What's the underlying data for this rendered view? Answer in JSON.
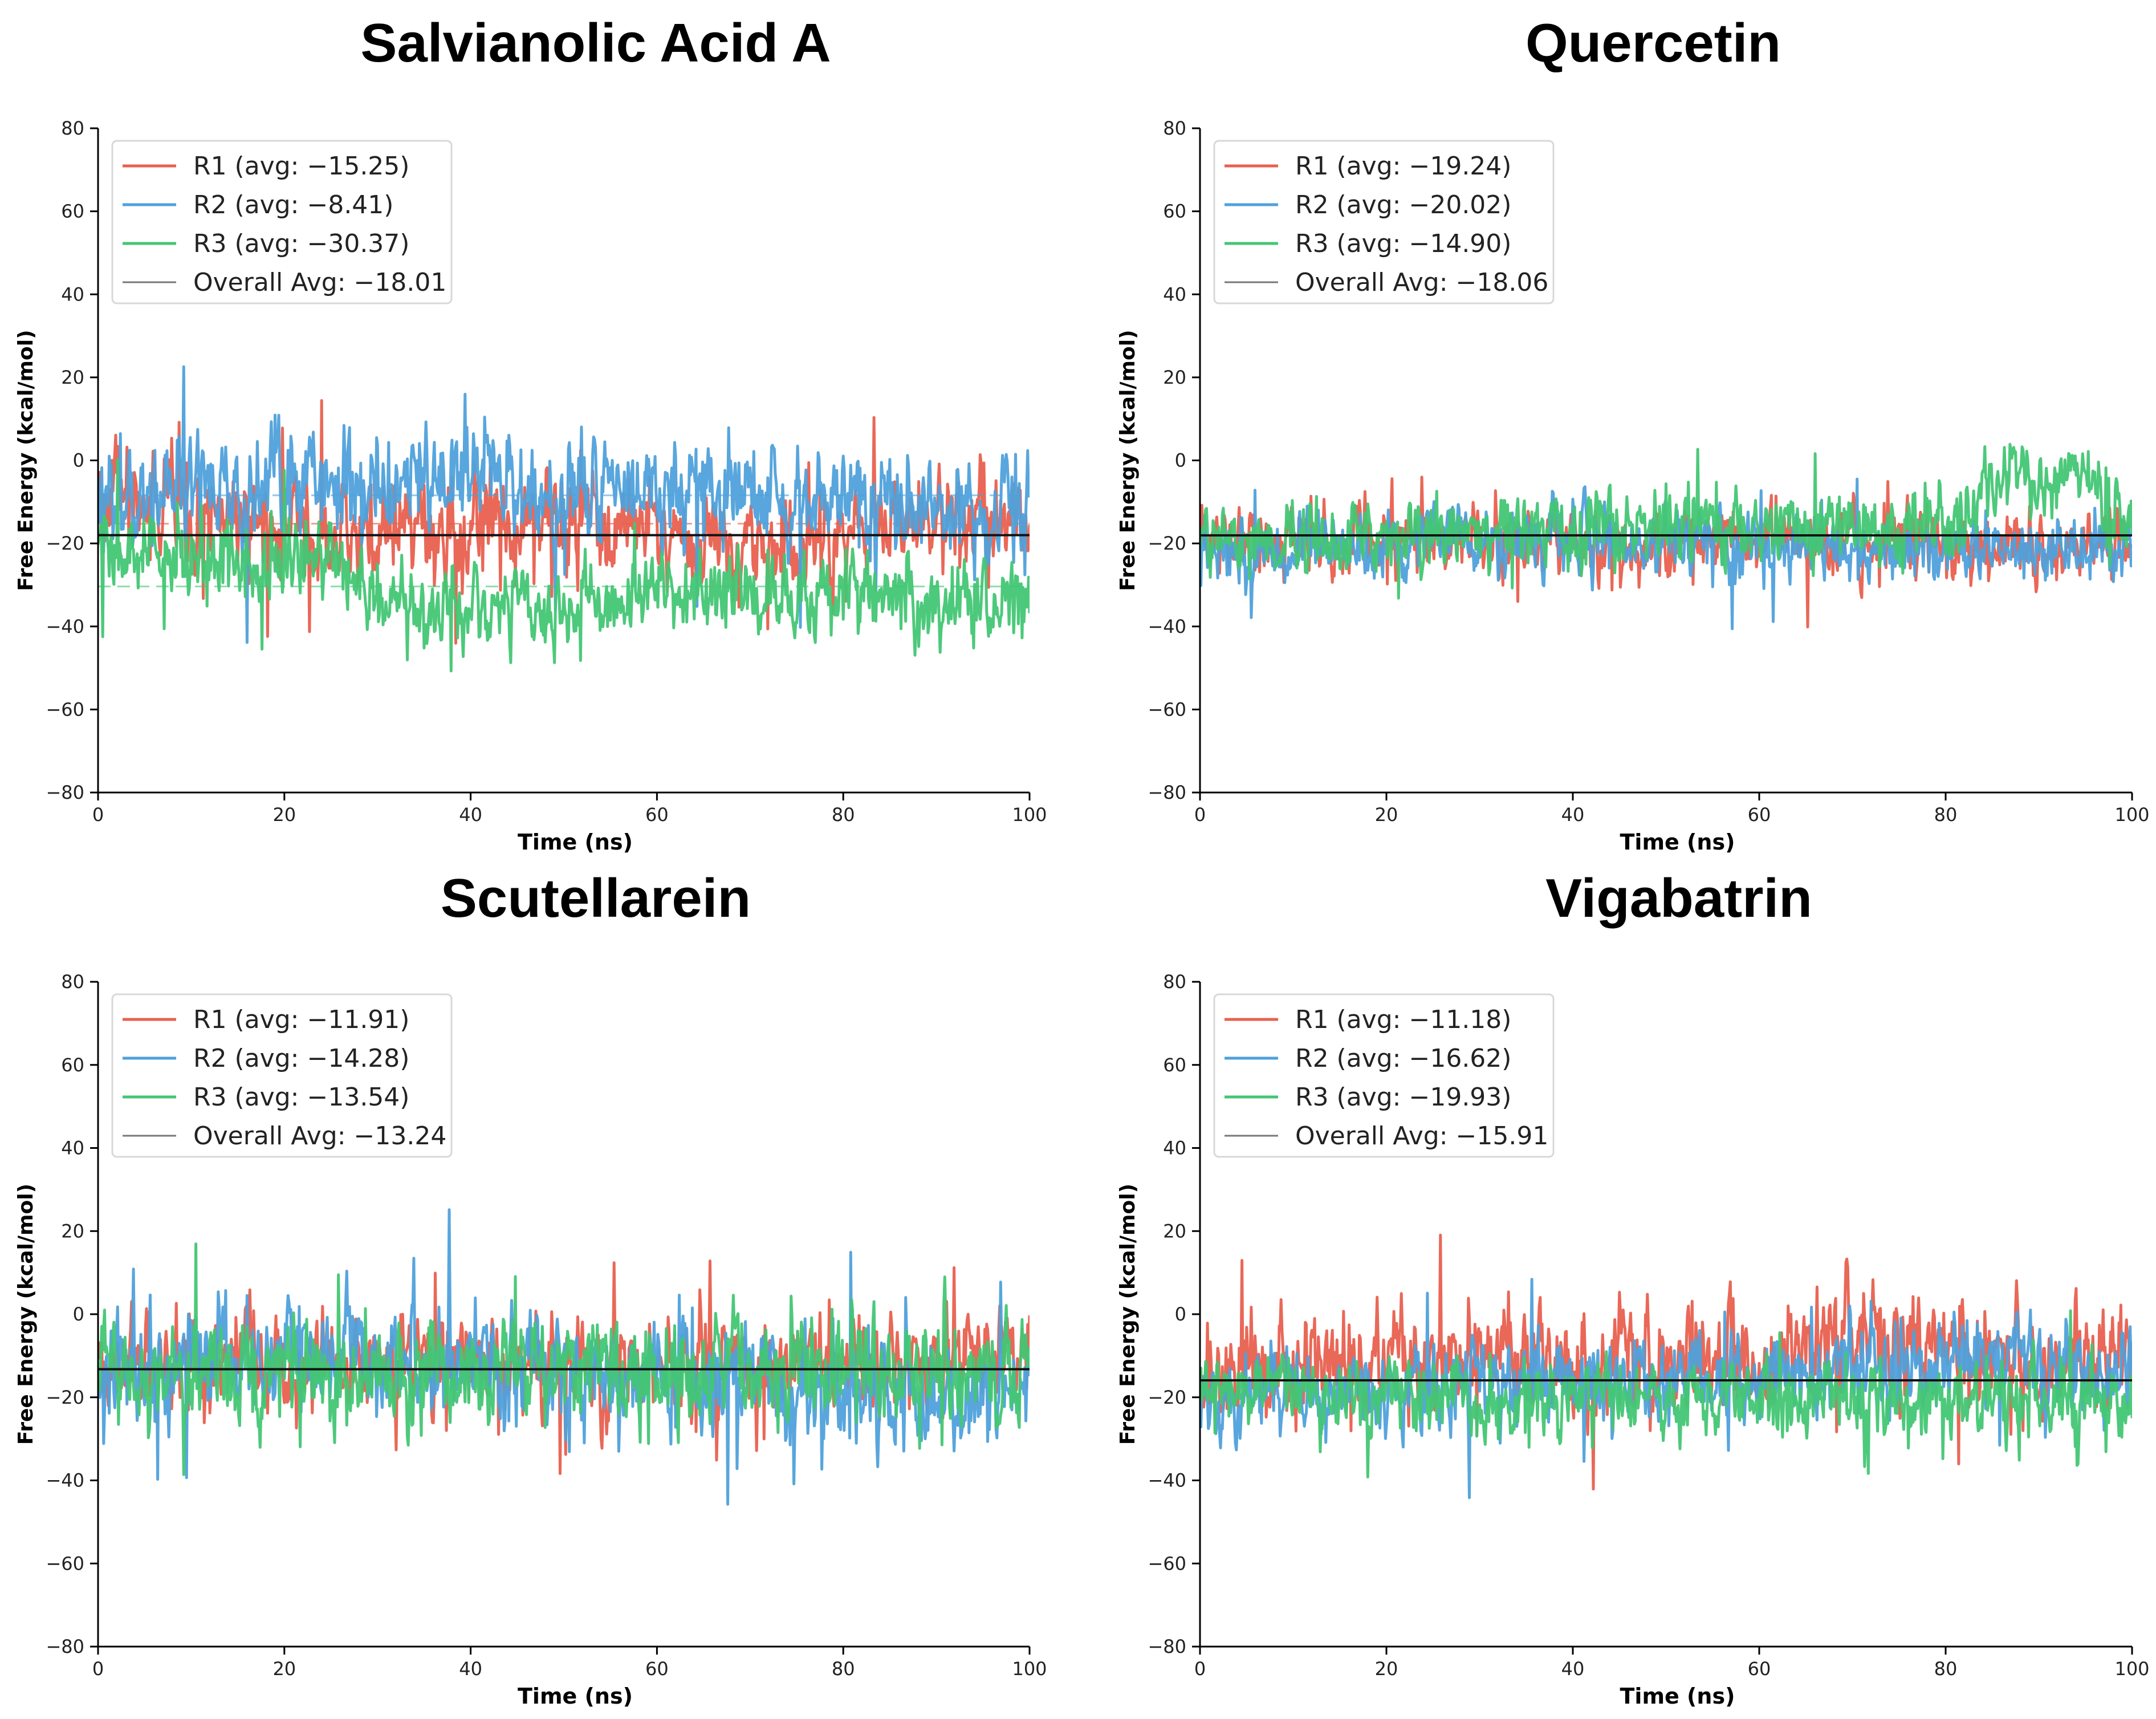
{
  "colors": {
    "R1": "#e8604f",
    "R2": "#4fa1db",
    "R3": "#43c674",
    "overall": "#111111"
  },
  "chart_data": [
    {
      "type": "line",
      "title": "Salvianolic Acid A",
      "xlabel": "Time (ns)",
      "ylabel": "Free Energy (kcal/mol)",
      "xlim": [
        0,
        100
      ],
      "ylim": [
        -80,
        80
      ],
      "xticks": [
        0,
        20,
        40,
        60,
        80,
        100
      ],
      "yticks": [
        -80,
        -60,
        -40,
        -20,
        0,
        20,
        40,
        60,
        80
      ],
      "series": [
        {
          "name": "R1",
          "legend": "R1 (avg: −15.25)",
          "avg": -15.25,
          "spread": 5,
          "profile": [
            [
              0,
              -8
            ],
            [
              15,
              -14
            ],
            [
              30,
              -18
            ],
            [
              50,
              -15
            ],
            [
              70,
              -20
            ],
            [
              90,
              -14
            ],
            [
              100,
              -15
            ]
          ]
        },
        {
          "name": "R2",
          "legend": "R2 (avg: −8.41)",
          "avg": -8.41,
          "spread": 5.5,
          "profile": [
            [
              0,
              -8
            ],
            [
              20,
              -6
            ],
            [
              40,
              -5
            ],
            [
              60,
              -7
            ],
            [
              80,
              -9
            ],
            [
              90,
              -12
            ],
            [
              100,
              -12
            ]
          ]
        },
        {
          "name": "R3",
          "legend": "R3 (avg: −30.37)",
          "avg": -30.37,
          "spread": 4.5,
          "profile": [
            [
              0,
              -22
            ],
            [
              25,
              -25
            ],
            [
              30,
              -35
            ],
            [
              45,
              -38
            ],
            [
              60,
              -32
            ],
            [
              80,
              -33
            ],
            [
              100,
              -35
            ]
          ]
        }
      ],
      "overall_avg": -18.01,
      "overall_legend": "Overall Avg: −18.01",
      "show_series_avg_lines": true
    },
    {
      "type": "line",
      "title": "Quercetin",
      "xlabel": "Time (ns)",
      "ylabel": "Free Energy (kcal/mol)",
      "xlim": [
        0,
        100
      ],
      "ylim": [
        -80,
        80
      ],
      "xticks": [
        0,
        20,
        40,
        60,
        80,
        100
      ],
      "yticks": [
        -80,
        -60,
        -40,
        -20,
        0,
        20,
        40,
        60,
        80
      ],
      "series": [
        {
          "name": "R1",
          "legend": "R1 (avg: −19.24)",
          "avg": -19.24,
          "spread": 3.5,
          "profile": [
            [
              0,
              -19
            ],
            [
              50,
              -20
            ],
            [
              100,
              -20
            ]
          ]
        },
        {
          "name": "R2",
          "legend": "R2 (avg: −20.02)",
          "avg": -20.02,
          "spread": 3.5,
          "profile": [
            [
              0,
              -24
            ],
            [
              30,
              -18
            ],
            [
              60,
              -21
            ],
            [
              100,
              -22
            ]
          ]
        },
        {
          "name": "R3",
          "legend": "R3 (avg: −14.90)",
          "avg": -14.9,
          "spread": 4,
          "profile": [
            [
              0,
              -19
            ],
            [
              40,
              -16
            ],
            [
              80,
              -16
            ],
            [
              86,
              -4
            ],
            [
              95,
              -2
            ],
            [
              100,
              -15
            ]
          ]
        }
      ],
      "overall_avg": -18.06,
      "overall_legend": "Overall Avg: −18.06",
      "show_series_avg_lines": false
    },
    {
      "type": "line",
      "title": "Scutellarein",
      "xlabel": "Time (ns)",
      "ylabel": "Free Energy (kcal/mol)",
      "xlim": [
        0,
        100
      ],
      "ylim": [
        -80,
        80
      ],
      "xticks": [
        0,
        20,
        40,
        60,
        80,
        100
      ],
      "yticks": [
        -80,
        -60,
        -40,
        -20,
        0,
        20,
        40,
        60,
        80
      ],
      "series": [
        {
          "name": "R1",
          "legend": "R1 (avg: −11.91)",
          "avg": -11.91,
          "spread": 5,
          "profile": [
            [
              0,
              -12
            ],
            [
              50,
              -12
            ],
            [
              100,
              -11
            ]
          ]
        },
        {
          "name": "R2",
          "legend": "R2 (avg: −14.28)",
          "avg": -14.28,
          "spread": 6,
          "profile": [
            [
              0,
              -16
            ],
            [
              20,
              -8
            ],
            [
              40,
              -12
            ],
            [
              60,
              -15
            ],
            [
              90,
              -20
            ],
            [
              100,
              -18
            ]
          ]
        },
        {
          "name": "R3",
          "legend": "R3 (avg: −13.54)",
          "avg": -13.54,
          "spread": 5.5,
          "profile": [
            [
              0,
              -14
            ],
            [
              50,
              -14
            ],
            [
              100,
              -13
            ]
          ]
        }
      ],
      "overall_avg": -13.24,
      "overall_legend": "Overall Avg: −13.24",
      "show_series_avg_lines": false
    },
    {
      "type": "line",
      "title": "Vigabatrin",
      "xlabel": "Time (ns)",
      "ylabel": "Free Energy (kcal/mol)",
      "xlim": [
        0,
        100
      ],
      "ylim": [
        -80,
        80
      ],
      "xticks": [
        0,
        20,
        40,
        60,
        80,
        100
      ],
      "yticks": [
        -80,
        -60,
        -40,
        -20,
        0,
        20,
        40,
        60,
        80
      ],
      "series": [
        {
          "name": "R1",
          "legend": "R1 (avg: −11.18)",
          "avg": -11.18,
          "spread": 5.5,
          "profile": [
            [
              0,
              -15
            ],
            [
              20,
              -10
            ],
            [
              40,
              -12
            ],
            [
              60,
              -12
            ],
            [
              70,
              -5
            ],
            [
              80,
              -8
            ],
            [
              100,
              -12
            ]
          ]
        },
        {
          "name": "R2",
          "legend": "R2 (avg: −16.62)",
          "avg": -16.62,
          "spread": 4.5,
          "profile": [
            [
              0,
              -20
            ],
            [
              30,
              -17
            ],
            [
              60,
              -14
            ],
            [
              80,
              -12
            ],
            [
              100,
              -14
            ]
          ]
        },
        {
          "name": "R3",
          "legend": "R3 (avg: −19.93)",
          "avg": -19.93,
          "spread": 4,
          "profile": [
            [
              0,
              -18
            ],
            [
              50,
              -20
            ],
            [
              100,
              -21
            ]
          ]
        }
      ],
      "overall_avg": -15.91,
      "overall_legend": "Overall Avg: −15.91",
      "show_series_avg_lines": false
    }
  ]
}
